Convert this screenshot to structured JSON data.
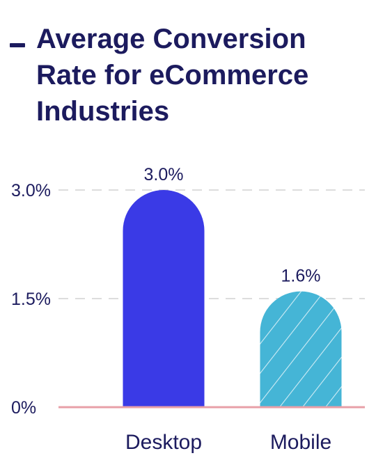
{
  "chart_data": {
    "type": "bar",
    "title": "Average Conversion Rate for eCommerce Industries",
    "categories": [
      "Desktop",
      "Mobile"
    ],
    "values": [
      3.0,
      1.6
    ],
    "data_labels": [
      "3.0%",
      "1.6%"
    ],
    "y_ticks": [
      0,
      1.5,
      3.0
    ],
    "y_tick_labels": [
      "0%",
      "1.5%",
      "3.0%"
    ],
    "ylim": [
      0,
      3.0
    ],
    "grid": true,
    "legend": "none",
    "colors": {
      "desktop": "#3a3ae6",
      "mobile": "#45b5d6",
      "mobile_hatch": "#ffffff",
      "baseline": "#e8a0a8",
      "grid": "#dddddd",
      "text": "#1c1b5e"
    }
  }
}
